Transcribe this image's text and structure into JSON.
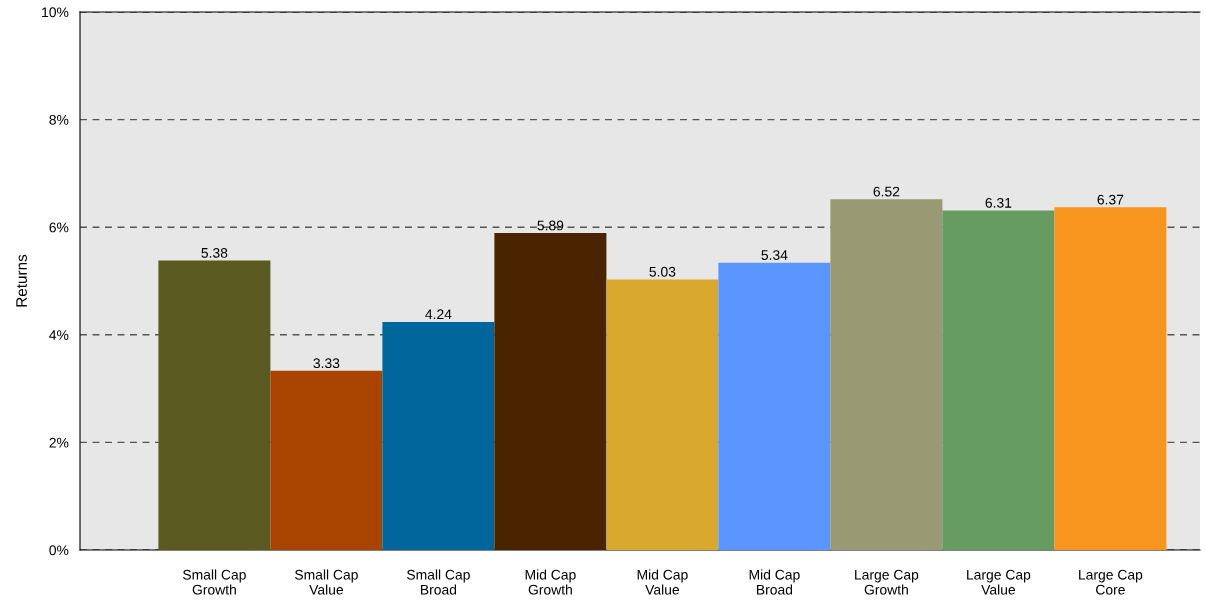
{
  "chart_data": {
    "type": "bar",
    "ylabel": "Returns",
    "categories": [
      "Small Cap\nGrowth",
      "Small Cap\nValue",
      "Small Cap\nBroad",
      "Mid Cap\nGrowth",
      "Mid Cap\nValue",
      "Mid Cap\nBroad",
      "Large Cap\nGrowth",
      "Large Cap\nValue",
      "Large Cap\nCore"
    ],
    "values": [
      5.38,
      3.33,
      4.24,
      5.89,
      5.03,
      5.34,
      6.52,
      6.31,
      6.37
    ],
    "colors": [
      "#5b5a20",
      "#a84300",
      "#00669b",
      "#4a2300",
      "#d9a92f",
      "#5b95ff",
      "#999974",
      "#669c62",
      "#f7951e"
    ],
    "ylim": [
      0,
      10
    ],
    "yticks": [
      {
        "value": 0,
        "label": "0%"
      },
      {
        "value": 2,
        "label": "2%"
      },
      {
        "value": 4,
        "label": "4%"
      },
      {
        "value": 6,
        "label": "6%"
      },
      {
        "value": 8,
        "label": "8%"
      },
      {
        "value": 10,
        "label": "10%"
      }
    ],
    "grid": "y",
    "line_style": "dashed",
    "data_labels": true,
    "legend": false
  }
}
